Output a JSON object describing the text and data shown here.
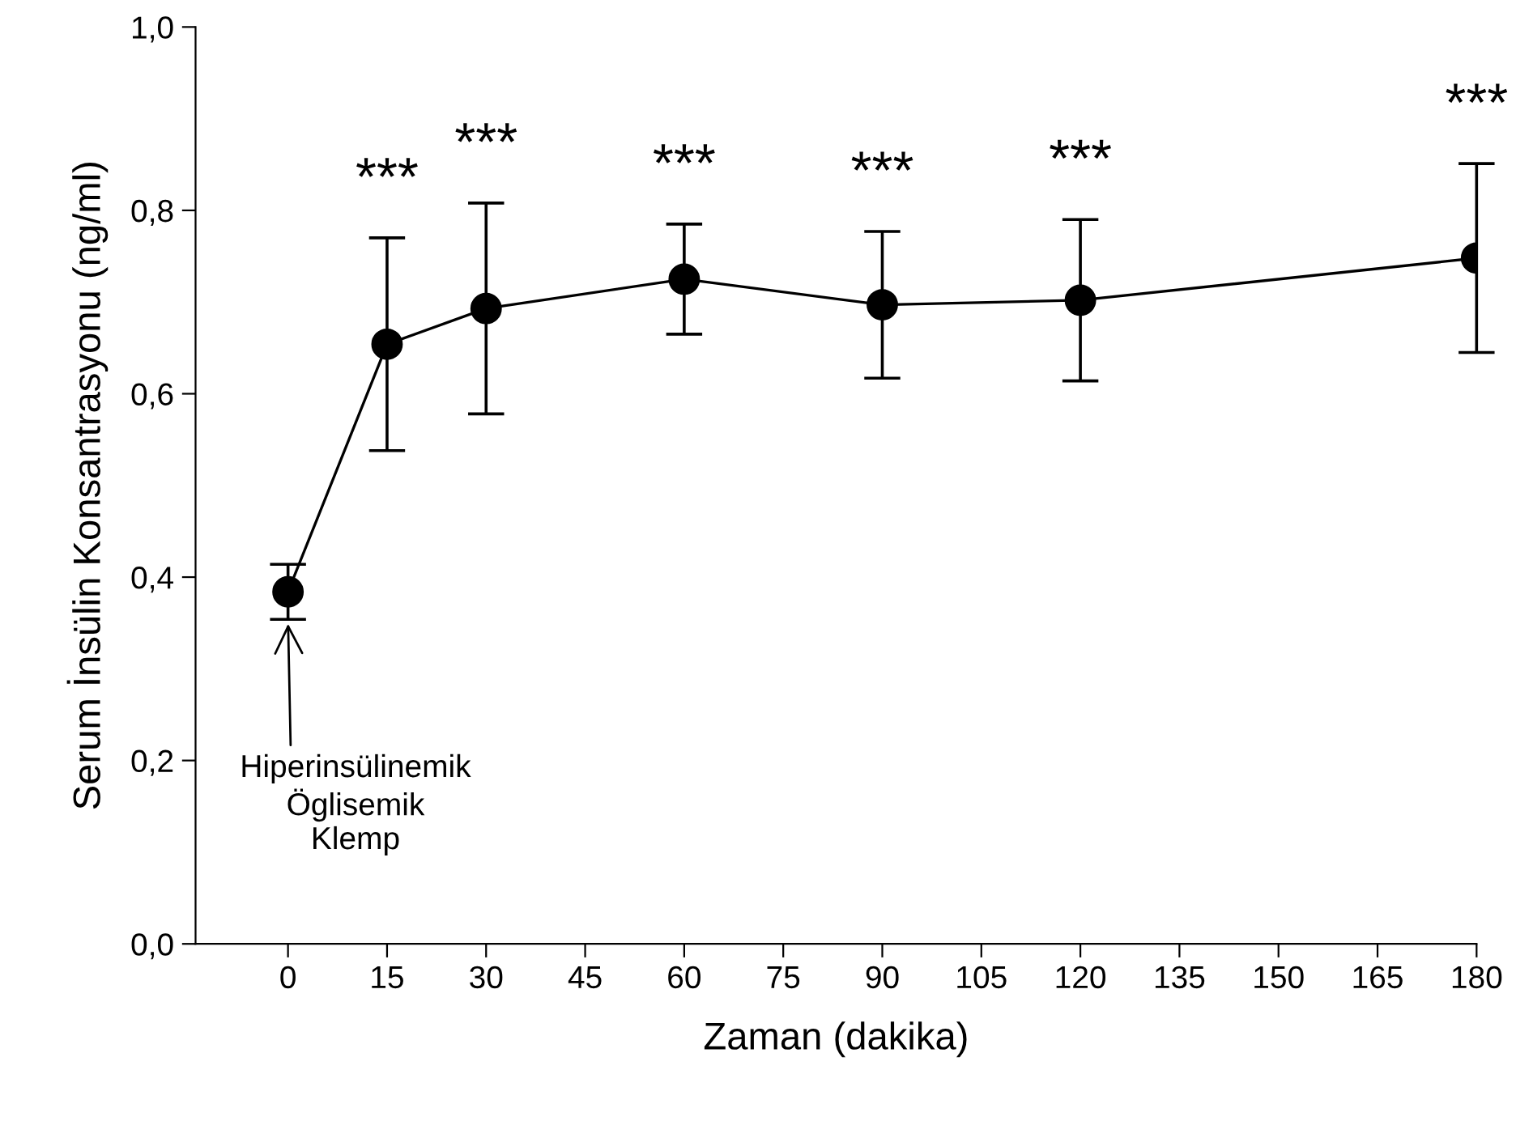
{
  "chart_data": {
    "type": "line",
    "xlabel": "Zaman (dakika)",
    "ylabel": "Serum İnsülin Konsantrasyonu (ng/ml)",
    "x": [
      0,
      15,
      30,
      60,
      90,
      120,
      180
    ],
    "series": [
      {
        "color": "#000000",
        "values": [
          0.384,
          0.654,
          0.693,
          0.725,
          0.697,
          0.702,
          0.748
        ],
        "errors": [
          0.03,
          0.116,
          0.115,
          0.06,
          0.08,
          0.088,
          0.103
        ]
      }
    ],
    "xlim": [
      -14,
      180
    ],
    "xticks": [
      0,
      15,
      30,
      45,
      60,
      75,
      90,
      105,
      120,
      135,
      150,
      165,
      180
    ],
    "ylim": [
      0,
      1.0
    ],
    "yticks": [
      {
        "value": 0,
        "label": "0,0"
      },
      {
        "value": 0.2,
        "label": "0,2"
      },
      {
        "value": 0.4,
        "label": "0,4"
      },
      {
        "value": 0.6,
        "label": "0,6"
      },
      {
        "value": 0.8,
        "label": "0,8"
      },
      {
        "value": 1.0,
        "label": "1,0"
      }
    ],
    "marker": "circle",
    "line_style": "solid",
    "grid": false,
    "legend": false,
    "annotations": [
      "***",
      "***",
      "***",
      "***",
      "***",
      "***",
      "Hiperinsülinemik\nÖglisemik\nKlemp"
    ]
  }
}
